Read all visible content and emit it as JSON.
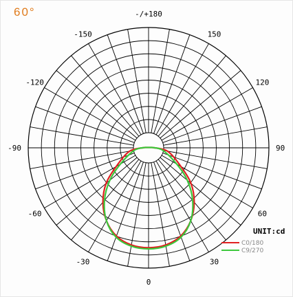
{
  "title": "60°",
  "chart_data": {
    "type": "polar",
    "title": "60°",
    "angle_labels": [
      {
        "label": "-/+180",
        "angle": 180
      },
      {
        "label": "150",
        "angle": 150
      },
      {
        "label": "-150",
        "angle": -150
      },
      {
        "label": "120",
        "angle": 120
      },
      {
        "label": "-120",
        "angle": -120
      },
      {
        "label": "90",
        "angle": 90
      },
      {
        "label": "-90",
        "angle": -90
      },
      {
        "label": "60",
        "angle": 60
      },
      {
        "label": "-60",
        "angle": -60
      },
      {
        "label": "30",
        "angle": 30
      },
      {
        "label": "-30",
        "angle": -30
      },
      {
        "label": "0",
        "angle": 0
      }
    ],
    "unit_label": "UNIT:cd",
    "legend_position": "bottom-right",
    "series": [
      {
        "name": "C0/180",
        "color": "#e02020",
        "angles": [
          -95,
          -80,
          -60,
          -50,
          -40,
          -30,
          -20,
          -10,
          0,
          10,
          20,
          30,
          40,
          50,
          60,
          80,
          95
        ],
        "values": [
          0.03,
          0.16,
          0.31,
          0.46,
          0.59,
          0.7,
          0.78,
          0.82,
          0.83,
          0.82,
          0.78,
          0.7,
          0.59,
          0.46,
          0.31,
          0.16,
          0.03
        ]
      },
      {
        "name": "C9/270",
        "color": "#3cc83c",
        "angles": [
          -95,
          -80,
          -60,
          -50,
          -40,
          -30,
          -20,
          -10,
          0,
          10,
          20,
          30,
          40,
          50,
          60,
          80,
          95
        ],
        "values": [
          0.03,
          0.12,
          0.27,
          0.42,
          0.57,
          0.7,
          0.79,
          0.83,
          0.84,
          0.83,
          0.79,
          0.7,
          0.57,
          0.42,
          0.27,
          0.12,
          0.03
        ]
      }
    ]
  }
}
